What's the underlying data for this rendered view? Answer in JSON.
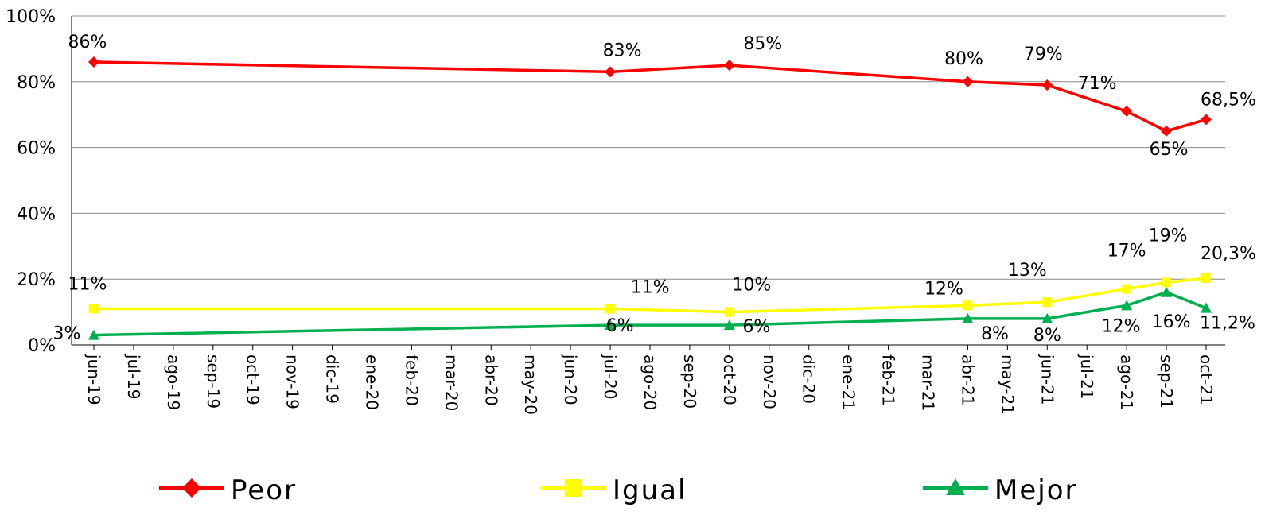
{
  "chart_data": {
    "type": "line",
    "title": "",
    "xlabel": "",
    "ylabel": "",
    "ylim": [
      0,
      100
    ],
    "grid": "horizontal",
    "legend_position": "bottom",
    "y_ticks": [
      "0%",
      "20%",
      "40%",
      "60%",
      "80%",
      "100%"
    ],
    "categories": [
      "jun-19",
      "jul-19",
      "ago-19",
      "sep-19",
      "oct-19",
      "nov-19",
      "dic-19",
      "ene-20",
      "feb-20",
      "mar-20",
      "abr-20",
      "may-20",
      "jun-20",
      "jul-20",
      "ago-20",
      "sep-20",
      "oct-20",
      "nov-20",
      "dic-20",
      "ene-21",
      "feb-21",
      "mar-21",
      "abr-21",
      "may-21",
      "jun-21",
      "jul-21",
      "ago-21",
      "sep-21",
      "oct-21"
    ],
    "series": [
      {
        "name": "Peor",
        "color": "#ff0000",
        "marker": "diamond",
        "points": [
          {
            "x": "jun-19",
            "y": 86,
            "label": "86%"
          },
          {
            "x": "jul-20",
            "y": 83,
            "label": "83%"
          },
          {
            "x": "oct-20",
            "y": 85,
            "label": "85%"
          },
          {
            "x": "abr-21",
            "y": 80,
            "label": "80%"
          },
          {
            "x": "jun-21",
            "y": 79,
            "label": "79%"
          },
          {
            "x": "ago-21",
            "y": 71,
            "label": "71%"
          },
          {
            "x": "sep-21",
            "y": 65,
            "label": "65%"
          },
          {
            "x": "oct-21",
            "y": 68.5,
            "label": "68,5%"
          }
        ]
      },
      {
        "name": "Igual",
        "color": "#ffff00",
        "marker": "square",
        "points": [
          {
            "x": "jun-19",
            "y": 11,
            "label": "11%"
          },
          {
            "x": "jul-20",
            "y": 11,
            "label": "11%"
          },
          {
            "x": "oct-20",
            "y": 10,
            "label": "10%"
          },
          {
            "x": "abr-21",
            "y": 12,
            "label": "12%"
          },
          {
            "x": "jun-21",
            "y": 13,
            "label": "13%"
          },
          {
            "x": "ago-21",
            "y": 17,
            "label": "17%"
          },
          {
            "x": "sep-21",
            "y": 19,
            "label": "19%"
          },
          {
            "x": "oct-21",
            "y": 20.3,
            "label": "20,3%"
          }
        ]
      },
      {
        "name": "Mejor",
        "color": "#00b050",
        "marker": "triangle",
        "points": [
          {
            "x": "jun-19",
            "y": 3,
            "label": "3%"
          },
          {
            "x": "jul-20",
            "y": 6,
            "label": "6%"
          },
          {
            "x": "oct-20",
            "y": 6,
            "label": "6%"
          },
          {
            "x": "abr-21",
            "y": 8,
            "label": "8%"
          },
          {
            "x": "jun-21",
            "y": 8,
            "label": "8%"
          },
          {
            "x": "ago-21",
            "y": 12,
            "label": "12%"
          },
          {
            "x": "sep-21",
            "y": 16,
            "label": "16%"
          },
          {
            "x": "oct-21",
            "y": 11.2,
            "label": "11,2%"
          }
        ]
      }
    ]
  }
}
